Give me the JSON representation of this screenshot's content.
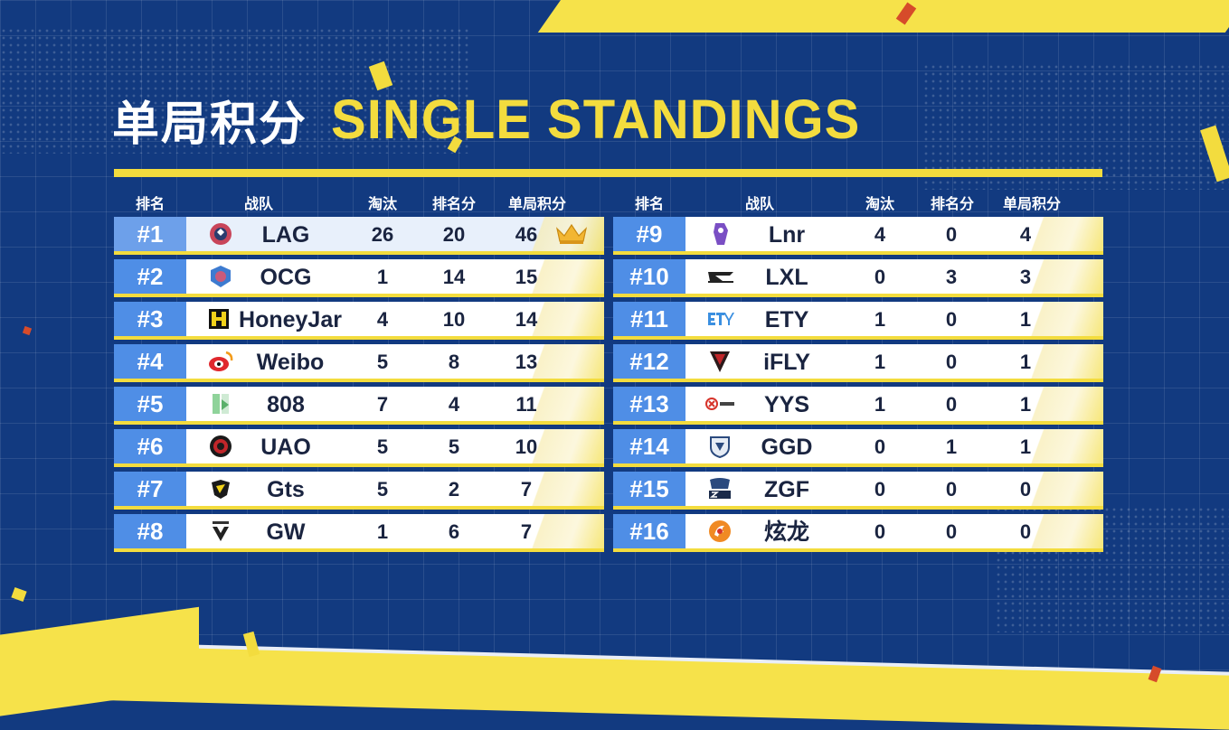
{
  "title": {
    "cn": "单局积分",
    "en": "SINGLE STANDINGS"
  },
  "headers": {
    "left": {
      "rank": "排名",
      "team": "战队",
      "elims": "淘汰",
      "place_pts": "排名分",
      "total": "单局积分"
    },
    "right": {
      "rank": "排名",
      "team": "战队",
      "elims": "淘汰",
      "place_pts": "排名分",
      "total": "单局积分"
    }
  },
  "left_rows": [
    {
      "rank": "#1",
      "team": "LAG",
      "elims": "26",
      "place": "20",
      "total": "46",
      "logo": "lag-logo"
    },
    {
      "rank": "#2",
      "team": "OCG",
      "elims": "1",
      "place": "14",
      "total": "15",
      "logo": "ocg-logo"
    },
    {
      "rank": "#3",
      "team": "HoneyJar",
      "elims": "4",
      "place": "10",
      "total": "14",
      "logo": "honeyjar-logo"
    },
    {
      "rank": "#4",
      "team": "Weibo",
      "elims": "5",
      "place": "8",
      "total": "13",
      "logo": "weibo-logo"
    },
    {
      "rank": "#5",
      "team": "808",
      "elims": "7",
      "place": "4",
      "total": "11",
      "logo": "808-logo"
    },
    {
      "rank": "#6",
      "team": "UAO",
      "elims": "5",
      "place": "5",
      "total": "10",
      "logo": "uao-logo"
    },
    {
      "rank": "#7",
      "team": "Gts",
      "elims": "5",
      "place": "2",
      "total": "7",
      "logo": "gts-logo"
    },
    {
      "rank": "#8",
      "team": "GW",
      "elims": "1",
      "place": "6",
      "total": "7",
      "logo": "gw-logo"
    }
  ],
  "right_rows": [
    {
      "rank": "#9",
      "team": "Lnr",
      "elims": "4",
      "place": "0",
      "total": "4",
      "logo": "lnr-logo"
    },
    {
      "rank": "#10",
      "team": "LXL",
      "elims": "0",
      "place": "3",
      "total": "3",
      "logo": "lxl-logo"
    },
    {
      "rank": "#11",
      "team": "ETY",
      "elims": "1",
      "place": "0",
      "total": "1",
      "logo": "ety-logo"
    },
    {
      "rank": "#12",
      "team": "iFLY",
      "elims": "1",
      "place": "0",
      "total": "1",
      "logo": "ifly-logo"
    },
    {
      "rank": "#13",
      "team": "YYS",
      "elims": "1",
      "place": "0",
      "total": "1",
      "logo": "yys-logo"
    },
    {
      "rank": "#14",
      "team": "GGD",
      "elims": "0",
      "place": "1",
      "total": "1",
      "logo": "ggd-logo"
    },
    {
      "rank": "#15",
      "team": "ZGF",
      "elims": "0",
      "place": "0",
      "total": "0",
      "logo": "zgf-logo"
    },
    {
      "rank": "#16",
      "team": "炫龙",
      "elims": "0",
      "place": "0",
      "total": "0",
      "logo": "xuanlong-logo"
    }
  ],
  "icons": {
    "leader": "crown-icon"
  },
  "colors": {
    "background": "#123a80",
    "accent_yellow": "#f3dc3e",
    "rank_blue": "#4f8ee6",
    "text_dark": "#1a2440"
  }
}
